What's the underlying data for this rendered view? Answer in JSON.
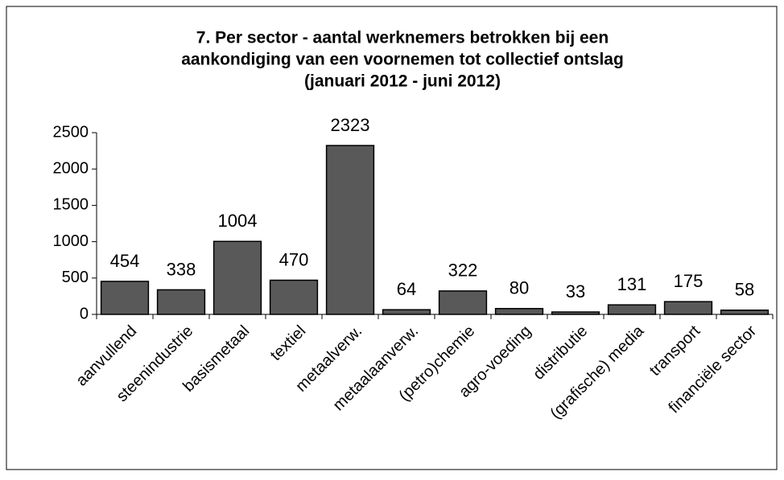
{
  "chart_data": {
    "type": "bar",
    "title": [
      "7. Per sector - aantal werknemers betrokken bij een",
      "aankondiging van een voornemen  tot collectief ontslag",
      "(januari 2012 - juni 2012)"
    ],
    "categories": [
      "aanvullend",
      "steenindustrie",
      "basismetaal",
      "textiel",
      "metaalverw.",
      "metaalaanverw.",
      "(petro)chemie",
      "agro-voeding",
      "distributie",
      "(grafische) media",
      "transport",
      "financiële sector"
    ],
    "values": [
      454,
      338,
      1004,
      470,
      2323,
      64,
      322,
      80,
      33,
      131,
      175,
      58
    ],
    "color": "#595959",
    "ylim": [
      0,
      2500
    ],
    "yticks": [
      0,
      500,
      1000,
      1500,
      2000,
      2500
    ],
    "grid": false
  }
}
